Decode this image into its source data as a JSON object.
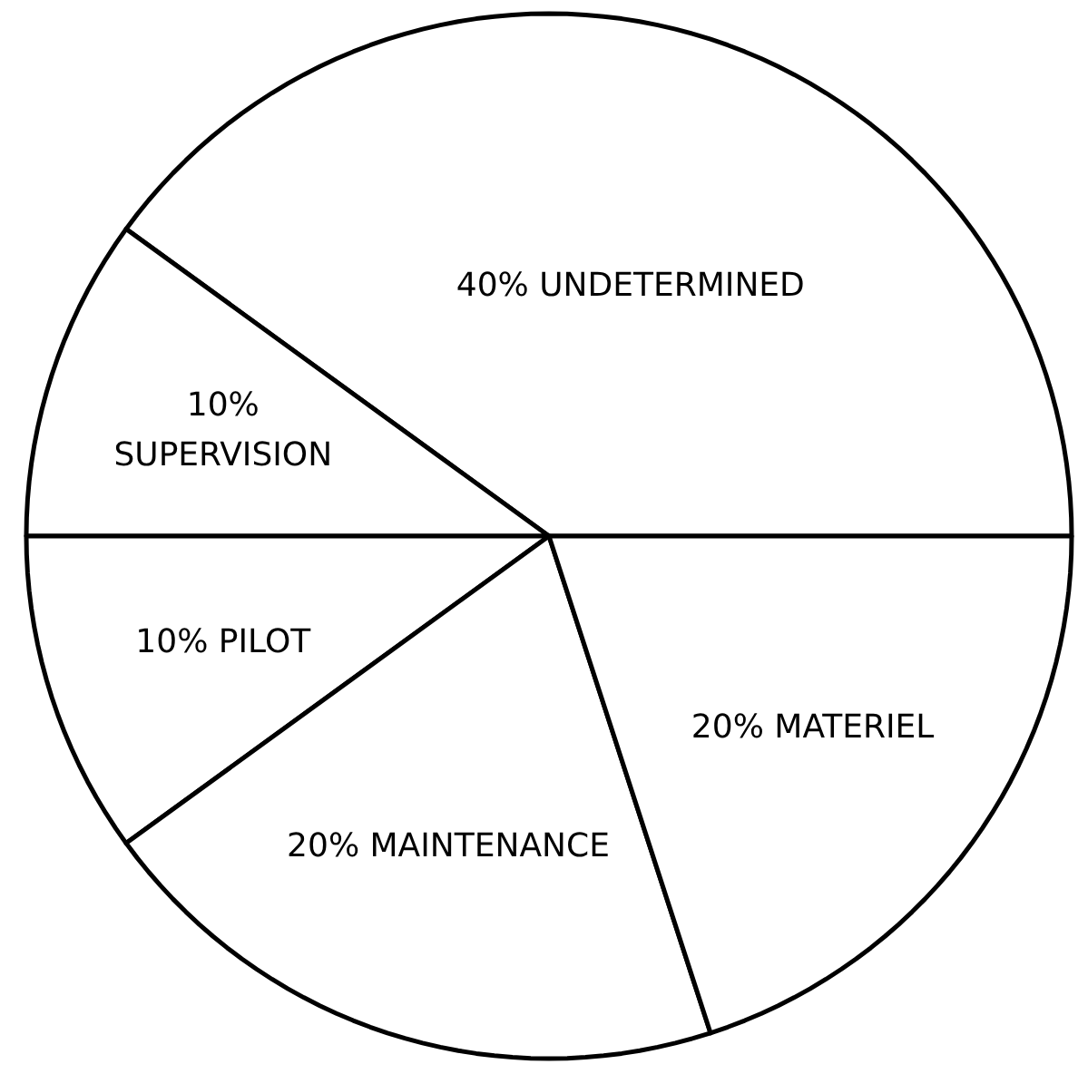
{
  "chart_data": {
    "type": "pie",
    "categories": [
      "UNDETERMINED",
      "SUPERVISION",
      "PILOT",
      "MAINTENANCE",
      "MATERIEL"
    ],
    "values": [
      40,
      10,
      10,
      20,
      20
    ],
    "value_labels": [
      "40%",
      "10%",
      "10%",
      "20%",
      "20%"
    ],
    "colors": [
      "#ffffff",
      "#ffffff",
      "#ffffff",
      "#ffffff",
      "#ffffff"
    ]
  }
}
